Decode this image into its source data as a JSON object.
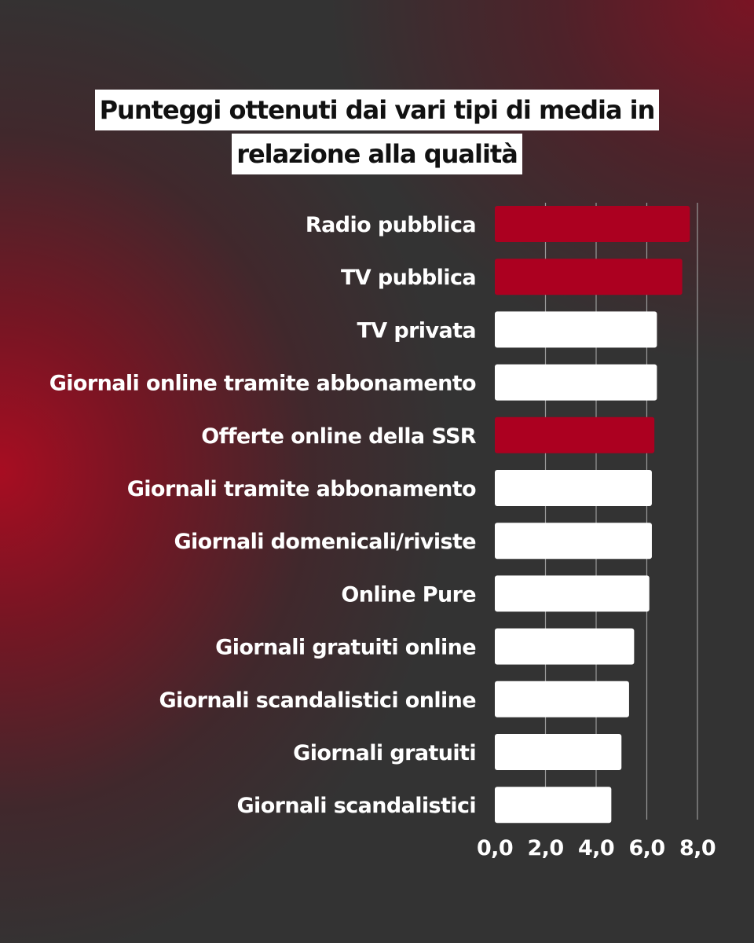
{
  "chart_data": {
    "type": "bar",
    "orientation": "horizontal",
    "title_lines": [
      "Punteggi ottenuti dai vari tipi di media in",
      "relazione alla qualità"
    ],
    "categories": [
      "Radio pubblica",
      "TV pubblica",
      "TV privata",
      "Giornali online tramite abbonamento",
      "Offerte online della SSR",
      "Giornali tramite abbonamento",
      "Giornali domenicali/riviste",
      "Online Pure",
      "Giornali gratuiti online",
      "Giornali scandalistici online",
      "Giornali gratuiti",
      "Giornali scandalistici"
    ],
    "values": [
      7.7,
      7.4,
      6.4,
      6.4,
      6.3,
      6.2,
      6.2,
      6.1,
      5.5,
      5.3,
      5.0,
      4.6
    ],
    "highlighted": [
      true,
      true,
      false,
      false,
      true,
      false,
      false,
      false,
      false,
      false,
      false,
      false
    ],
    "xlim": [
      0,
      8
    ],
    "xticks": [
      0,
      2,
      4,
      6,
      8
    ],
    "xtick_labels": [
      "0,0",
      "2,0",
      "4,0",
      "6,0",
      "8,0"
    ],
    "grid": true,
    "colors": {
      "highlight": "#ac0020",
      "default": "#ffffff",
      "grid": "#9a9a9a"
    }
  }
}
